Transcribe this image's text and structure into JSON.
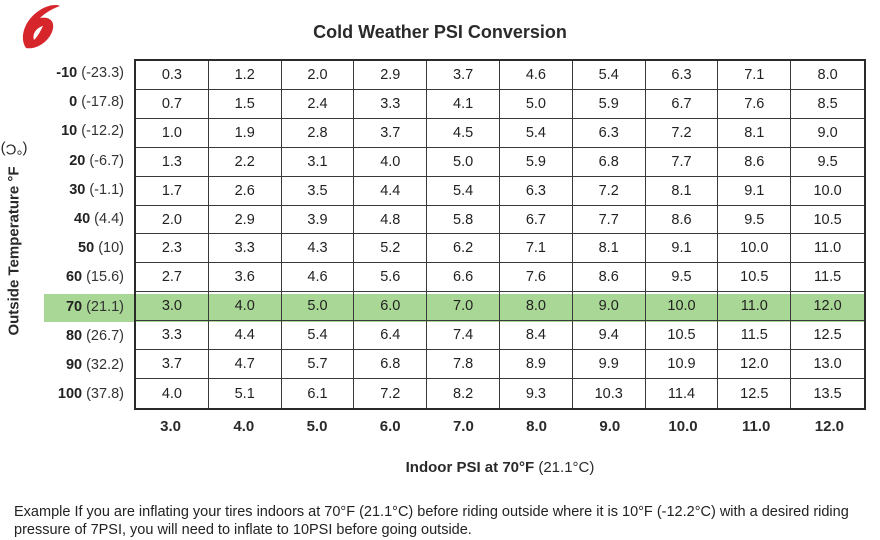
{
  "title": "Cold Weather PSI Conversion",
  "y_axis_label_bold": "Outside Temperature °F",
  "y_axis_label_light": "(°C)",
  "x_axis_label_bold": "Indoor PSI at 70°F",
  "x_axis_label_light": "(21.1°C)",
  "rows": [
    {
      "f": "-10",
      "c": "(-23.3)",
      "values": [
        "0.3",
        "1.2",
        "2.0",
        "2.9",
        "3.7",
        "4.6",
        "5.4",
        "6.3",
        "7.1",
        "8.0"
      ]
    },
    {
      "f": "0",
      "c": "(-17.8)",
      "values": [
        "0.7",
        "1.5",
        "2.4",
        "3.3",
        "4.1",
        "5.0",
        "5.9",
        "6.7",
        "7.6",
        "8.5"
      ]
    },
    {
      "f": "10",
      "c": "(-12.2)",
      "values": [
        "1.0",
        "1.9",
        "2.8",
        "3.7",
        "4.5",
        "5.4",
        "6.3",
        "7.2",
        "8.1",
        "9.0"
      ]
    },
    {
      "f": "20",
      "c": "(-6.7)",
      "values": [
        "1.3",
        "2.2",
        "3.1",
        "4.0",
        "5.0",
        "5.9",
        "6.8",
        "7.7",
        "8.6",
        "9.5"
      ]
    },
    {
      "f": "30",
      "c": "(-1.1)",
      "values": [
        "1.7",
        "2.6",
        "3.5",
        "4.4",
        "5.4",
        "6.3",
        "7.2",
        "8.1",
        "9.1",
        "10.0"
      ]
    },
    {
      "f": "40",
      "c": "(4.4)",
      "values": [
        "2.0",
        "2.9",
        "3.9",
        "4.8",
        "5.8",
        "6.7",
        "7.7",
        "8.6",
        "9.5",
        "10.5"
      ]
    },
    {
      "f": "50",
      "c": "(10)",
      "values": [
        "2.3",
        "3.3",
        "4.3",
        "5.2",
        "6.2",
        "7.1",
        "8.1",
        "9.1",
        "10.0",
        "11.0"
      ]
    },
    {
      "f": "60",
      "c": "(15.6)",
      "values": [
        "2.7",
        "3.6",
        "4.6",
        "5.6",
        "6.6",
        "7.6",
        "8.6",
        "9.5",
        "10.5",
        "11.5"
      ]
    },
    {
      "f": "70",
      "c": "(21.1)",
      "values": [
        "3.0",
        "4.0",
        "5.0",
        "6.0",
        "7.0",
        "8.0",
        "9.0",
        "10.0",
        "11.0",
        "12.0"
      ]
    },
    {
      "f": "80",
      "c": "(26.7)",
      "values": [
        "3.3",
        "4.4",
        "5.4",
        "6.4",
        "7.4",
        "8.4",
        "9.4",
        "10.5",
        "11.5",
        "12.5"
      ]
    },
    {
      "f": "90",
      "c": "(32.2)",
      "values": [
        "3.7",
        "4.7",
        "5.7",
        "6.8",
        "7.8",
        "8.9",
        "9.9",
        "10.9",
        "12.0",
        "13.0"
      ]
    },
    {
      "f": "100",
      "c": "(37.8)",
      "values": [
        "4.0",
        "5.1",
        "6.1",
        "7.2",
        "8.2",
        "9.3",
        "10.3",
        "11.4",
        "12.5",
        "13.5"
      ]
    }
  ],
  "columns": [
    "3.0",
    "4.0",
    "5.0",
    "6.0",
    "7.0",
    "8.0",
    "9.0",
    "10.0",
    "11.0",
    "12.0"
  ],
  "highlight_row_index": 8,
  "highlight_color": "#a9d795",
  "logo_color": "#d6262c",
  "example_text": "Example  If you are inflating your tires indoors at 70°F (21.1°C) before riding outside where it is 10°F (-12.2°C) with a desired riding pressure of 7PSI, you will need to inflate to 10PSI before going outside."
}
